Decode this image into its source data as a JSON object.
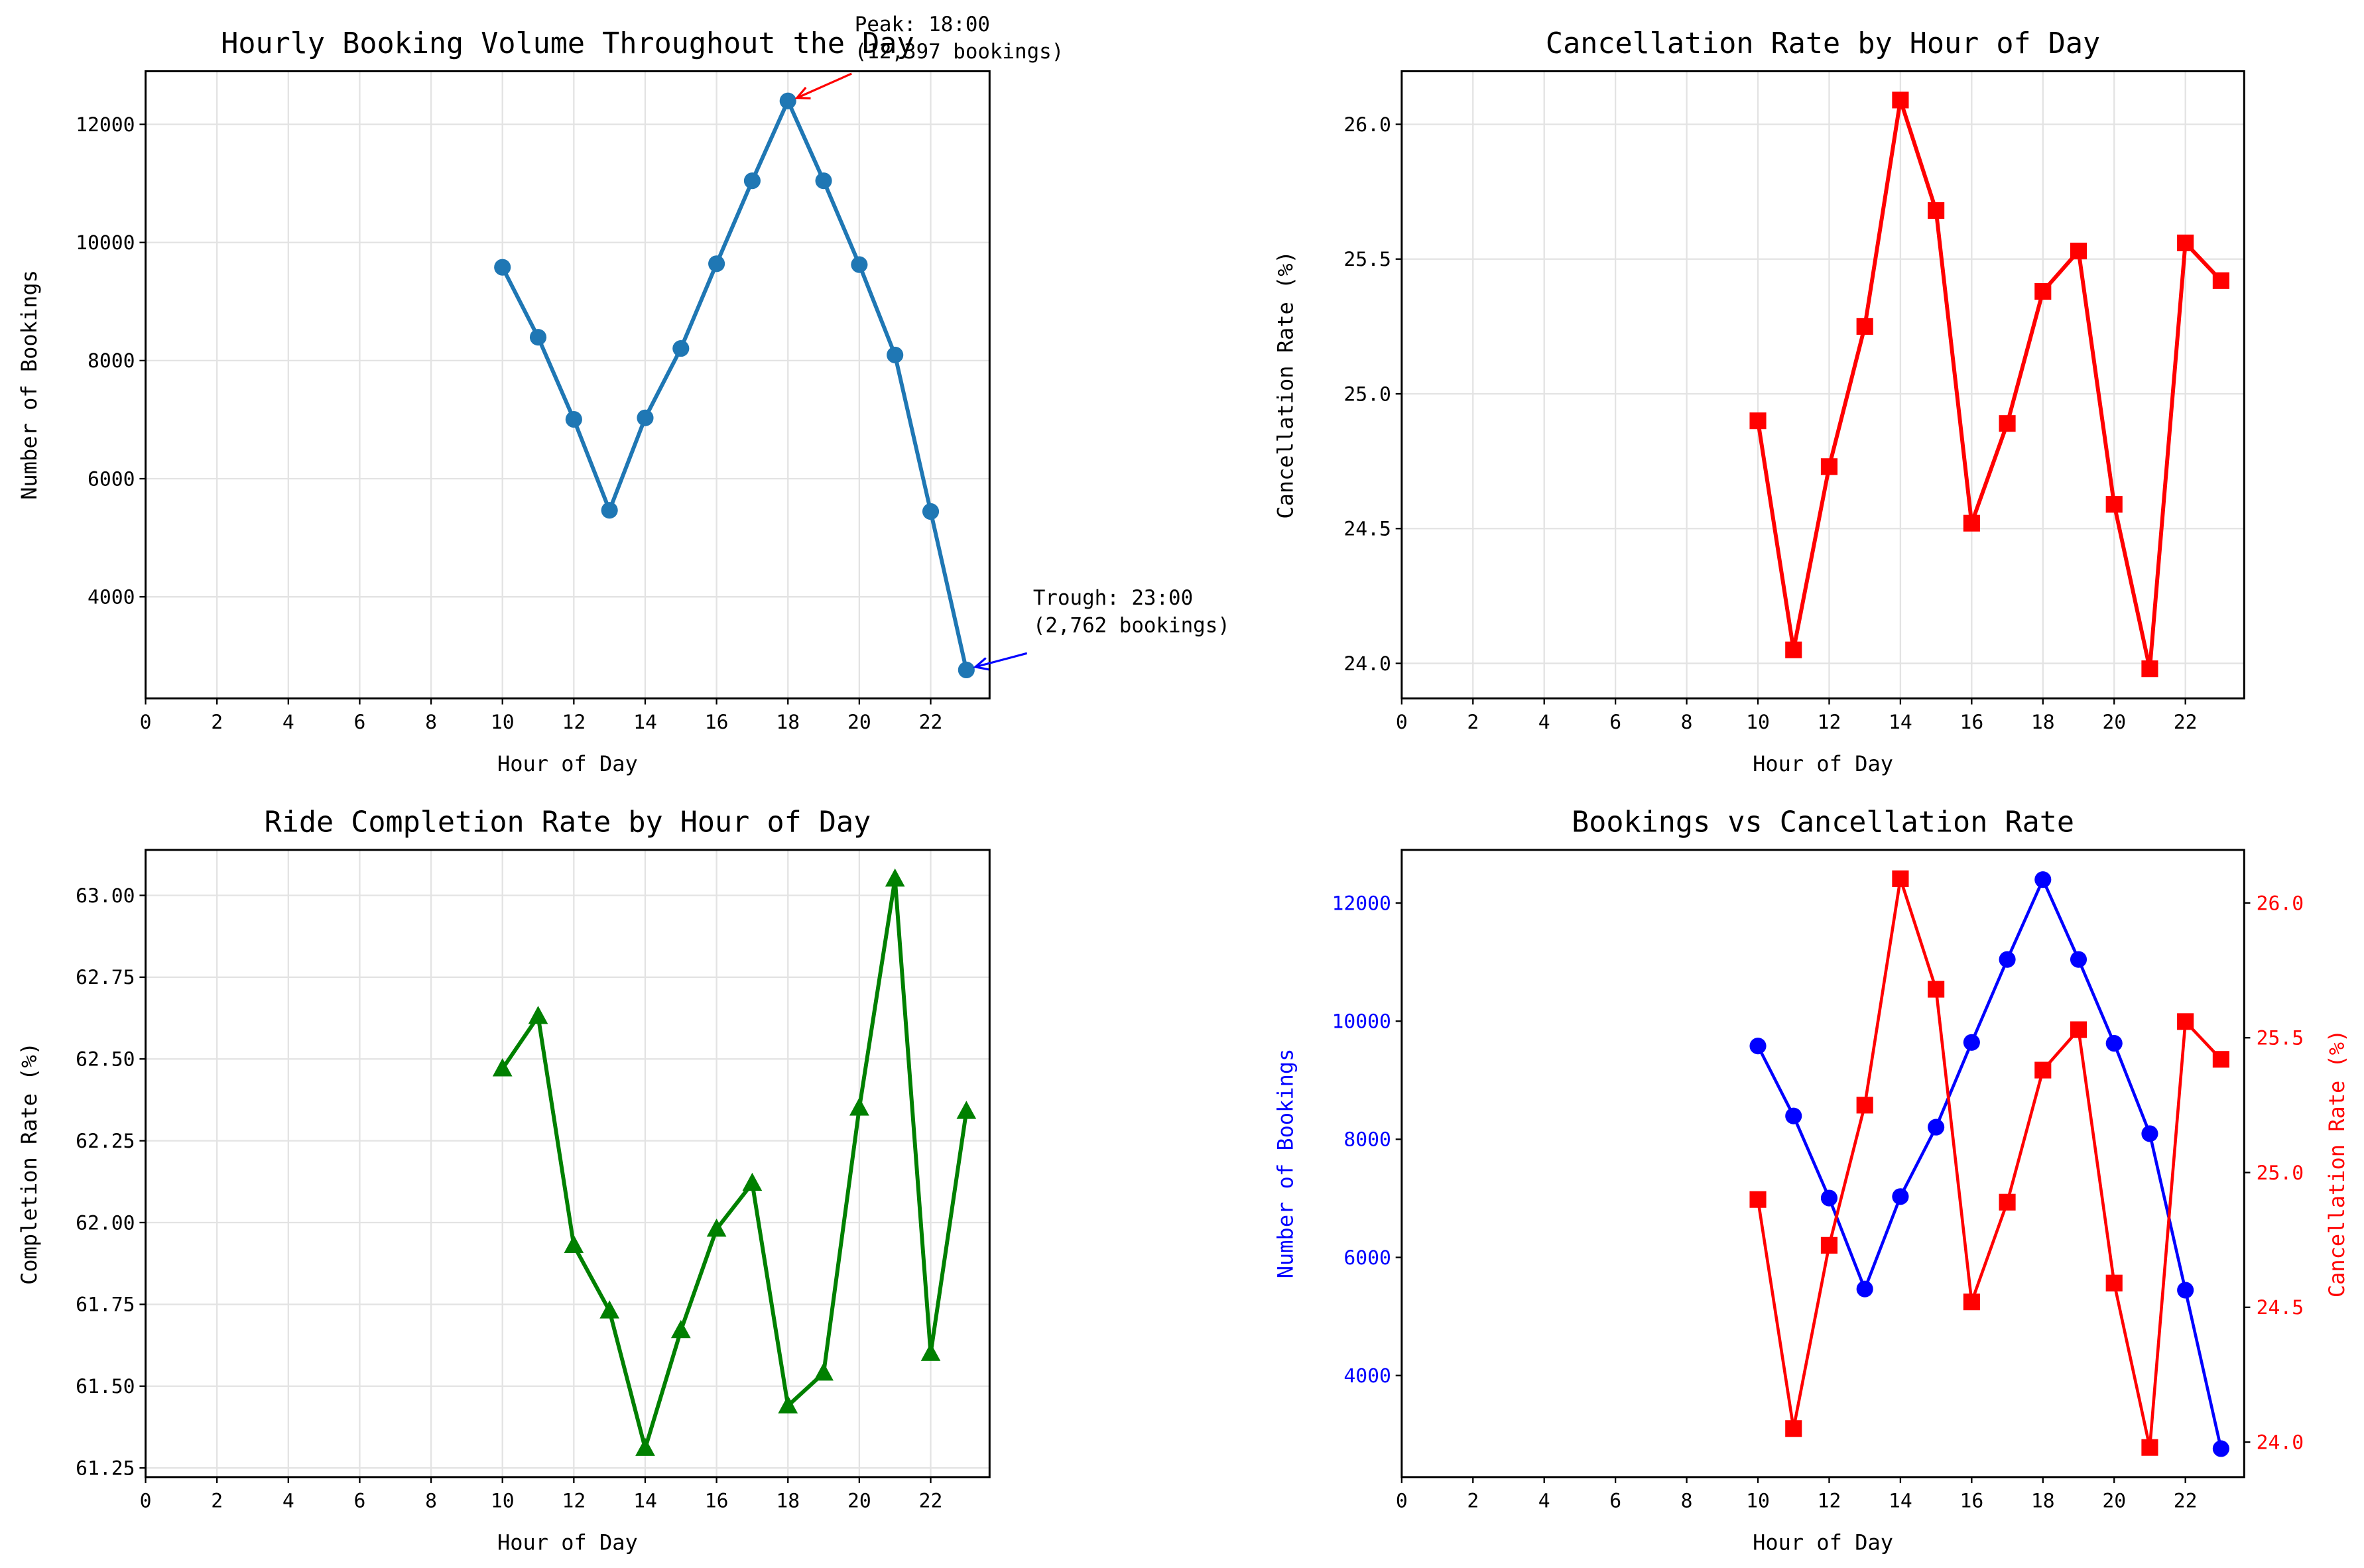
{
  "chart_data": [
    {
      "type": "line",
      "title": "Hourly Booking Volume Throughout the Day",
      "xlabel": "Hour of Day",
      "ylabel": "Number of Bookings",
      "x": [
        10,
        11,
        12,
        13,
        14,
        15,
        16,
        17,
        18,
        19,
        20,
        21,
        22,
        23
      ],
      "series": [
        {
          "values": [
            9580,
            8395,
            7005,
            5465,
            7030,
            8205,
            9640,
            11045,
            12397,
            11045,
            9625,
            8095,
            5445,
            2762
          ],
          "color": "#1f77b4",
          "marker": "circle"
        }
      ],
      "xlim": [
        0,
        23.65
      ],
      "ylim": [
        2280,
        12900
      ],
      "xticks": [
        "0",
        "2",
        "4",
        "6",
        "8",
        "10",
        "12",
        "14",
        "16",
        "18",
        "20",
        "22"
      ],
      "yticks": [
        "4000",
        "6000",
        "8000",
        "10000",
        "12000"
      ],
      "grid": true,
      "annotations": [
        {
          "lines": [
            "Peak: 18:00",
            "(12,397 bookings)"
          ],
          "x": 18,
          "y": 12397,
          "color": "#ff0000"
        },
        {
          "lines": [
            "Trough: 23:00",
            "(2,762 bookings)"
          ],
          "x": 23,
          "y": 2762,
          "color": "#0000ff"
        }
      ]
    },
    {
      "type": "line",
      "title": "Cancellation Rate by Hour of Day",
      "xlabel": "Hour of Day",
      "ylabel": "Cancellation Rate (%)",
      "x": [
        10,
        11,
        12,
        13,
        14,
        15,
        16,
        17,
        18,
        19,
        20,
        21,
        22,
        23
      ],
      "series": [
        {
          "values": [
            24.9,
            24.05,
            24.73,
            25.25,
            26.09,
            25.68,
            24.52,
            24.89,
            25.38,
            25.53,
            24.59,
            23.98,
            25.56,
            25.42
          ],
          "color": "#ff0000",
          "marker": "square"
        }
      ],
      "xlim": [
        0,
        23.65
      ],
      "ylim": [
        23.87,
        26.197
      ],
      "xticks": [
        "0",
        "2",
        "4",
        "6",
        "8",
        "10",
        "12",
        "14",
        "16",
        "18",
        "20",
        "22"
      ],
      "yticks": [
        "24.0",
        "24.5",
        "25.0",
        "25.5",
        "26.0"
      ],
      "grid": true
    },
    {
      "type": "line",
      "title": "Ride Completion Rate by Hour of Day",
      "xlabel": "Hour of Day",
      "ylabel": "Completion Rate (%)",
      "x": [
        10,
        11,
        12,
        13,
        14,
        15,
        16,
        17,
        18,
        19,
        20,
        21,
        22,
        23
      ],
      "series": [
        {
          "values": [
            62.47,
            62.63,
            61.93,
            61.73,
            61.31,
            61.67,
            61.98,
            62.12,
            61.44,
            61.54,
            62.35,
            63.05,
            61.6,
            62.34
          ],
          "color": "#008000",
          "marker": "triangle"
        }
      ],
      "xlim": [
        0,
        23.65
      ],
      "ylim": [
        61.222,
        63.139
      ],
      "xticks": [
        "0",
        "2",
        "4",
        "6",
        "8",
        "10",
        "12",
        "14",
        "16",
        "18",
        "20",
        "22"
      ],
      "yticks": [
        "61.25",
        "61.50",
        "61.75",
        "62.00",
        "62.25",
        "62.50",
        "62.75",
        "63.00"
      ],
      "grid": true
    },
    {
      "type": "line",
      "title": "Bookings vs Cancellation Rate",
      "xlabel": "Hour of Day",
      "ylabel": "Number of Bookings",
      "ylabel_right": "Cancellation Rate (%)",
      "x": [
        10,
        11,
        12,
        13,
        14,
        15,
        16,
        17,
        18,
        19,
        20,
        21,
        22,
        23
      ],
      "series": [
        {
          "values": [
            9580,
            8395,
            7005,
            5465,
            7030,
            8205,
            9640,
            11045,
            12397,
            11045,
            9625,
            8095,
            5445,
            2762
          ],
          "color": "#0000ff",
          "marker": "circle",
          "axis": "left"
        },
        {
          "values": [
            24.9,
            24.05,
            24.73,
            25.25,
            26.09,
            25.68,
            24.52,
            24.89,
            25.38,
            25.53,
            24.59,
            23.98,
            25.56,
            25.42
          ],
          "color": "#ff0000",
          "marker": "square",
          "axis": "right"
        }
      ],
      "xlim": [
        0,
        23.65
      ],
      "ylim": [
        2280,
        12900
      ],
      "ylim_right": [
        23.87,
        26.197
      ],
      "xticks": [
        "0",
        "2",
        "4",
        "6",
        "8",
        "10",
        "12",
        "14",
        "16",
        "18",
        "20",
        "22"
      ],
      "yticks": [
        "4000",
        "6000",
        "8000",
        "10000",
        "12000"
      ],
      "yticks_right": [
        "24.0",
        "24.5",
        "25.0",
        "25.5",
        "26.0"
      ],
      "grid": false
    }
  ]
}
